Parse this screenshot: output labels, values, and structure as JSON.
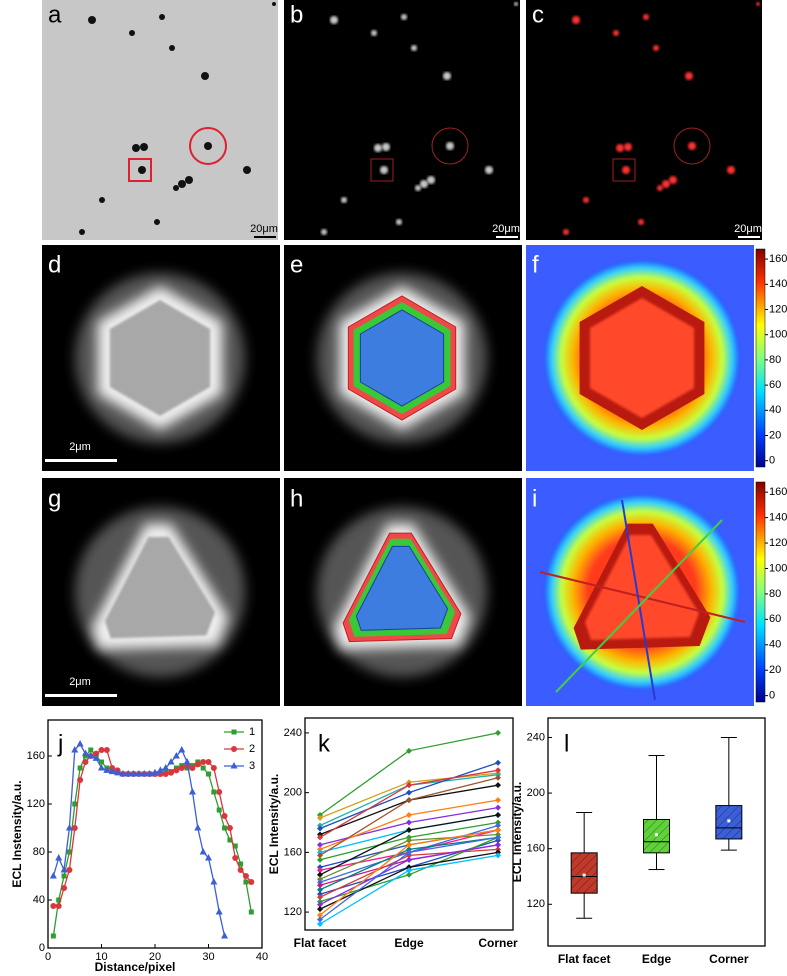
{
  "panel_labels": [
    "a",
    "b",
    "c",
    "d",
    "e",
    "f",
    "g",
    "h",
    "i",
    "j",
    "k",
    "l"
  ],
  "scale_bars": [
    "20μm",
    "20μm",
    "20μm",
    "2μm",
    "2μm"
  ],
  "colorbars": [
    {
      "ticks": [
        0,
        20,
        40,
        60,
        80,
        100,
        120,
        140,
        160
      ],
      "lim": [
        -5,
        168
      ]
    },
    {
      "ticks": [
        0,
        20,
        40,
        60,
        80,
        100,
        120,
        140,
        160
      ],
      "lim": [
        -5,
        168
      ]
    }
  ],
  "chart_data": [
    {
      "type": "line",
      "ylabel": "ECL Instensity/a.u.",
      "xlabel": "Distance/pixel",
      "xlim": [
        0,
        40
      ],
      "xticks": [
        0,
        10,
        20,
        30,
        40
      ],
      "ylim": [
        0,
        190
      ],
      "yticks": [
        0,
        40,
        80,
        120,
        160
      ],
      "legend": "upper right",
      "series": [
        {
          "name": "1",
          "color": "#2e9e2e",
          "marker": "square",
          "x": [
            1,
            2,
            3,
            4,
            5,
            6,
            7,
            8,
            9,
            10,
            11,
            12,
            13,
            14,
            15,
            16,
            17,
            18,
            19,
            20,
            21,
            22,
            23,
            24,
            25,
            26,
            27,
            28,
            29,
            30,
            31,
            32,
            33,
            34,
            35,
            36,
            37,
            38
          ],
          "values": [
            10,
            40,
            60,
            80,
            120,
            150,
            160,
            165,
            160,
            155,
            150,
            148,
            146,
            145,
            145,
            145,
            145,
            145,
            145,
            145,
            145,
            146,
            147,
            150,
            152,
            150,
            152,
            155,
            150,
            145,
            130,
            115,
            100,
            90,
            85,
            70,
            55,
            30
          ]
        },
        {
          "name": "2",
          "color": "#d9363e",
          "marker": "circle",
          "x": [
            1,
            2,
            3,
            4,
            5,
            6,
            7,
            8,
            9,
            10,
            11,
            12,
            13,
            14,
            15,
            16,
            17,
            18,
            19,
            20,
            21,
            22,
            23,
            24,
            25,
            26,
            27,
            28,
            29,
            30,
            31,
            32,
            33,
            34,
            35,
            36,
            37,
            38
          ],
          "values": [
            35,
            35,
            50,
            65,
            100,
            140,
            155,
            160,
            162,
            165,
            165,
            150,
            148,
            145,
            145,
            145,
            145,
            145,
            145,
            145,
            145,
            145,
            146,
            148,
            150,
            152,
            150,
            153,
            155,
            155,
            150,
            130,
            110,
            100,
            75,
            65,
            60,
            55
          ]
        },
        {
          "name": "3",
          "color": "#3a5fd9",
          "marker": "triangle",
          "x": [
            1,
            2,
            3,
            4,
            5,
            6,
            7,
            8,
            9,
            10,
            11,
            12,
            13,
            14,
            15,
            16,
            17,
            18,
            19,
            20,
            21,
            22,
            23,
            24,
            25,
            26,
            27,
            28,
            29,
            30,
            31,
            32,
            33
          ],
          "values": [
            60,
            75,
            65,
            100,
            165,
            170,
            162,
            160,
            158,
            150,
            148,
            147,
            146,
            145,
            145,
            145,
            145,
            145,
            145,
            146,
            148,
            150,
            155,
            160,
            165,
            155,
            130,
            100,
            80,
            75,
            55,
            30,
            10
          ]
        }
      ]
    },
    {
      "type": "line",
      "ylabel": "ECL Intensity/a.u.",
      "categories": [
        "Flat facet",
        "Edge",
        "Corner"
      ],
      "ylim": [
        108,
        250
      ],
      "yticks": [
        120,
        160,
        200,
        240
      ],
      "series": [
        {
          "color": "#2e9e2e",
          "values": [
            185,
            228,
            240
          ]
        },
        {
          "color": "#d4a017",
          "values": [
            183,
            207,
            213
          ]
        },
        {
          "color": "#20b2aa",
          "values": [
            178,
            205,
            212
          ]
        },
        {
          "color": "#1f4fbf",
          "values": [
            176,
            200,
            220
          ]
        },
        {
          "color": "#111111",
          "values": [
            172,
            195,
            205
          ]
        },
        {
          "color": "#d9363e",
          "values": [
            170,
            205,
            215
          ]
        },
        {
          "color": "#8a2be2",
          "values": [
            165,
            180,
            190
          ]
        },
        {
          "color": "#ff7f0e",
          "values": [
            162,
            185,
            195
          ]
        },
        {
          "color": "#00bfff",
          "values": [
            160,
            175,
            185
          ]
        },
        {
          "color": "#a0522d",
          "values": [
            158,
            195,
            210
          ]
        },
        {
          "color": "#2e9e2e",
          "values": [
            155,
            170,
            180
          ]
        },
        {
          "color": "#1f4fbf",
          "values": [
            150,
            165,
            175
          ]
        },
        {
          "color": "#ff1493",
          "values": [
            148,
            160,
            175
          ]
        },
        {
          "color": "#111111",
          "values": [
            145,
            175,
            185
          ]
        },
        {
          "color": "#6b8e23",
          "values": [
            142,
            168,
            172
          ]
        },
        {
          "color": "#4169e1",
          "values": [
            140,
            160,
            178
          ]
        },
        {
          "color": "#c71585",
          "values": [
            138,
            155,
            165
          ]
        },
        {
          "color": "#008080",
          "values": [
            135,
            162,
            170
          ]
        },
        {
          "color": "#1f4fbf",
          "values": [
            132,
            150,
            168
          ]
        },
        {
          "color": "#d9363e",
          "values": [
            130,
            158,
            162
          ]
        },
        {
          "color": "#2e9e2e",
          "values": [
            127,
            145,
            170
          ]
        },
        {
          "color": "#8a2be2",
          "values": [
            125,
            155,
            165
          ]
        },
        {
          "color": "#111111",
          "values": [
            122,
            150,
            160
          ]
        },
        {
          "color": "#ff7f0e",
          "values": [
            118,
            165,
            175
          ]
        },
        {
          "color": "#4169e1",
          "values": [
            115,
            160,
            170
          ]
        },
        {
          "color": "#00bfff",
          "values": [
            112,
            148,
            158
          ]
        }
      ]
    },
    {
      "type": "box",
      "ylabel": "ECL Intensity/a.u.",
      "categories": [
        "Flat facet",
        "Edge",
        "Corner"
      ],
      "ylim": [
        90,
        254
      ],
      "yticks": [
        120,
        160,
        200,
        240
      ],
      "boxes": [
        {
          "color": "#c0392b",
          "min": 110,
          "q1": 128,
          "median": 140,
          "q3": 157,
          "max": 186,
          "mean": 141
        },
        {
          "color": "#5fd13a",
          "min": 145,
          "q1": 157,
          "median": 165,
          "q3": 181,
          "max": 227,
          "mean": 170
        },
        {
          "color": "#3a5fd9",
          "min": 159,
          "q1": 167,
          "median": 175,
          "q3": 191,
          "max": 240,
          "mean": 180
        }
      ]
    }
  ]
}
